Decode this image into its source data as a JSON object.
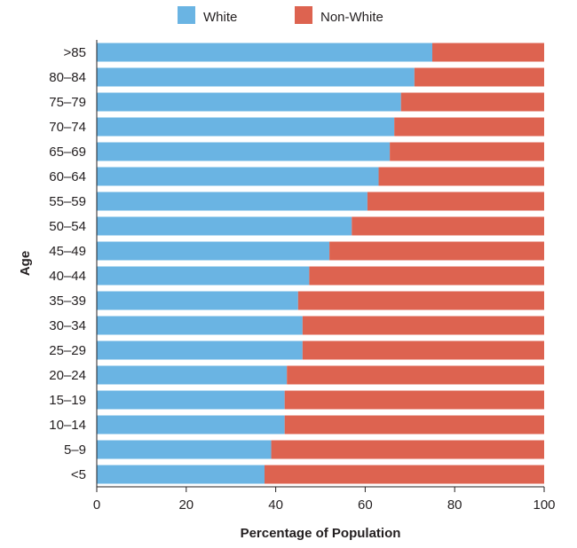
{
  "chart_data": {
    "type": "bar",
    "orientation": "horizontal",
    "stacked": true,
    "title": "",
    "xlabel": "Percentage of Population",
    "ylabel": "Age",
    "xlim": [
      0,
      100
    ],
    "xticks": [
      "0",
      "20",
      "40",
      "60",
      "80",
      "100"
    ],
    "grid": false,
    "legend_position": "top-center",
    "categories": [
      ">85",
      "80–84",
      "75–79",
      "70–74",
      "65–69",
      "60–64",
      "55–59",
      "50–54",
      "45–49",
      "40–44",
      "35–39",
      "30–34",
      "25–29",
      "20–24",
      "15–19",
      "10–14",
      "5–9",
      "<5"
    ],
    "series": [
      {
        "name": "White",
        "color": "#6ab4e3",
        "values": [
          75,
          71,
          68,
          66.5,
          65.5,
          63,
          60.5,
          57,
          52,
          47.5,
          45,
          46,
          46,
          42.5,
          42,
          42,
          39,
          37.5
        ]
      },
      {
        "name": "Non-White",
        "color": "#dd6350",
        "values": [
          25,
          29,
          32,
          33.5,
          34.5,
          37,
          39.5,
          43,
          48,
          52.5,
          55,
          54,
          54,
          57.5,
          58,
          58,
          61,
          62.5
        ]
      }
    ]
  }
}
